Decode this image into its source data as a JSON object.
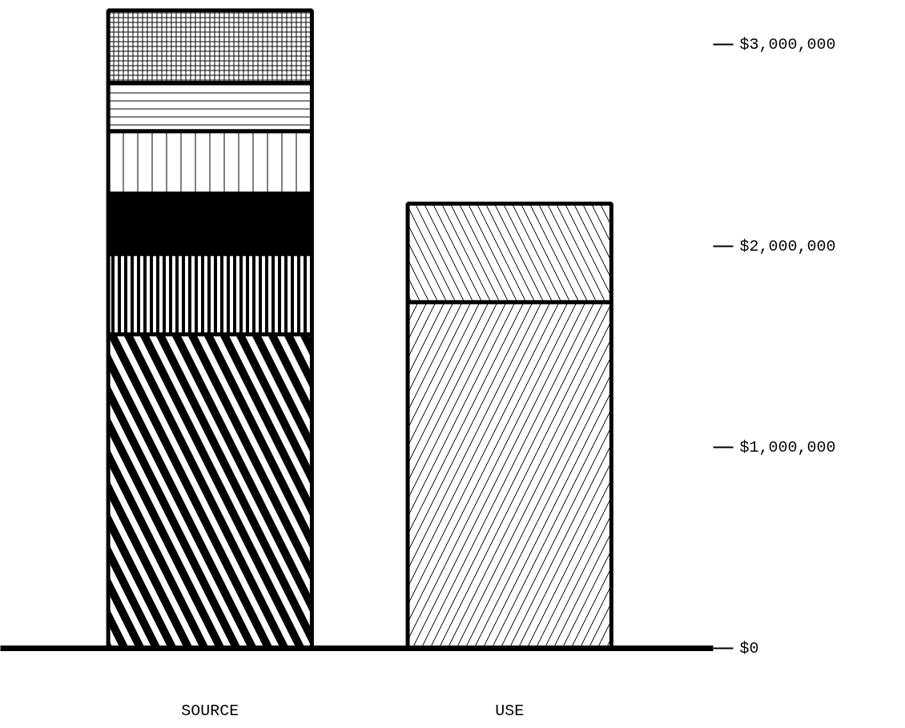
{
  "chart_data": {
    "type": "bar",
    "stacked": true,
    "categories": [
      "SOURCE",
      "USE"
    ],
    "series": [
      {
        "color": "#000000",
        "values": [
          1560000,
          null
        ]
      },
      {
        "color": "#000000",
        "values": [
          400000,
          null
        ]
      },
      {
        "color": "#000000",
        "values": [
          300000,
          null
        ]
      },
      {
        "color": "#000000",
        "values": [
          310000,
          null
        ]
      },
      {
        "color": "#000000",
        "values": [
          240000,
          null
        ]
      },
      {
        "color": "#000000",
        "values": [
          360000,
          null
        ]
      },
      {
        "color": "#000000",
        "values": [
          null,
          1720000
        ]
      },
      {
        "color": "#000000",
        "values": [
          null,
          490000
        ]
      }
    ],
    "ylim": [
      0,
      3200000
    ],
    "yticks": [
      {
        "value": 0,
        "label": "$0"
      },
      {
        "value": 1000000,
        "label": "$1,000,000"
      },
      {
        "value": 2000000,
        "label": "$2,000,000"
      },
      {
        "value": 3000000,
        "label": "$3,000,000"
      }
    ],
    "grid": false
  }
}
